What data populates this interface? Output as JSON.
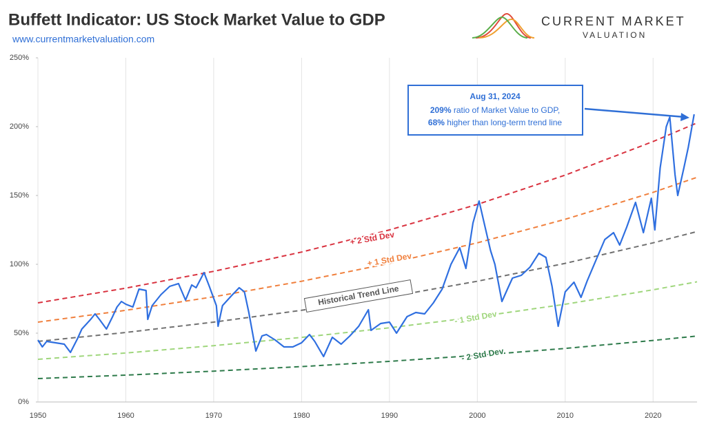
{
  "chart_data": {
    "type": "line",
    "title": "Buffett Indicator: US Stock Market Value to GDP",
    "subtitle": "www.currentmarketvaluation.com",
    "brand": [
      "CURRENT MARKET",
      "VALUATION"
    ],
    "xlim": [
      1950,
      2025
    ],
    "xticks": [
      1950,
      1960,
      1970,
      1980,
      1990,
      2000,
      2010,
      2020
    ],
    "ylim": [
      0,
      250
    ],
    "yticks": [
      {
        "value": 0,
        "label": "0%"
      },
      {
        "value": 50,
        "label": "50%"
      },
      {
        "value": 100,
        "label": "100%"
      },
      {
        "value": 150,
        "label": "150%"
      },
      {
        "value": 200,
        "label": "200%"
      },
      {
        "value": 250,
        "label": "250%"
      }
    ],
    "grid": true,
    "series": [
      {
        "name": "+ 2 Std Dev",
        "color": "#d9323f",
        "dashed": true,
        "x": [
          1950,
          1960,
          1970,
          1980,
          1990,
          2000,
          2010,
          2020,
          2025
        ],
        "values": [
          72,
          82.7,
          94.9,
          108.9,
          125.0,
          143.5,
          164.8,
          189.2,
          202.7
        ]
      },
      {
        "name": "+ 1 Std Dev",
        "color": "#f07f3c",
        "dashed": true,
        "x": [
          1950,
          1960,
          1970,
          1980,
          1990,
          2000,
          2010,
          2020,
          2025
        ],
        "values": [
          58,
          66.6,
          76.4,
          87.7,
          100.7,
          115.6,
          132.7,
          152.3,
          163.2
        ]
      },
      {
        "name": "Historical Trend Line",
        "color": "#707070",
        "dashed": true,
        "x": [
          1950,
          1960,
          1970,
          1980,
          1990,
          2000,
          2010,
          2020,
          2025
        ],
        "values": [
          44,
          50.5,
          58.0,
          66.6,
          76.4,
          87.7,
          100.7,
          115.6,
          123.8
        ]
      },
      {
        "name": "- 1 Std Dev",
        "color": "#9fd67c",
        "dashed": true,
        "x": [
          1950,
          1960,
          1970,
          1980,
          1990,
          2000,
          2010,
          2020,
          2025
        ],
        "values": [
          31,
          35.6,
          40.9,
          46.9,
          53.9,
          61.8,
          71.0,
          81.5,
          87.3
        ]
      },
      {
        "name": "- 2 Std Dev",
        "color": "#2d7a4a",
        "dashed": true,
        "x": [
          1950,
          1960,
          1970,
          1980,
          1990,
          2000,
          2010,
          2020,
          2025
        ],
        "values": [
          17,
          19.5,
          22.4,
          25.7,
          29.5,
          33.9,
          38.9,
          44.7,
          47.9
        ]
      },
      {
        "color": "#2f6fe0",
        "dashed": false,
        "x": [
          1950,
          1950.5,
          1951,
          1952,
          1953,
          1953.7,
          1954.5,
          1955,
          1956,
          1956.5,
          1957,
          1957.8,
          1958.5,
          1959,
          1959.5,
          1960,
          1960.8,
          1961.5,
          1962.3,
          1962.5,
          1963,
          1964,
          1965,
          1966,
          1966.8,
          1967.5,
          1968,
          1968.9,
          1969.5,
          1970.3,
          1970.5,
          1971,
          1972,
          1972.9,
          1973.5,
          1974,
          1974.8,
          1975.5,
          1976,
          1977,
          1978,
          1979,
          1980,
          1980.9,
          1981.5,
          1982.5,
          1983.5,
          1984.5,
          1985.5,
          1986.5,
          1987.6,
          1987.9,
          1989,
          1990,
          1990.8,
          1992,
          1993,
          1994,
          1995,
          1996,
          1997,
          1998,
          1998.7,
          1999.5,
          2000.2,
          2000.7,
          2001.5,
          2002,
          2002.8,
          2003.5,
          2004,
          2005,
          2006,
          2007,
          2007.8,
          2008.5,
          2009.2,
          2010,
          2011,
          2011.8,
          2012.5,
          2013.5,
          2014.5,
          2015.5,
          2016.2,
          2017,
          2018,
          2018.9,
          2019.8,
          2020.2,
          2020.8,
          2021.5,
          2021.9,
          2022.5,
          2022.8,
          2023.5,
          2024,
          2024.67
        ],
        "values": [
          45,
          40,
          44,
          43,
          42,
          36,
          46,
          53,
          60,
          64,
          60,
          53,
          62,
          69,
          73,
          71,
          69,
          82,
          81,
          60,
          70,
          78,
          84,
          86,
          74,
          85,
          83,
          94,
          84,
          70,
          55,
          70,
          77,
          83,
          80,
          65,
          37,
          48,
          49,
          45,
          40,
          40,
          43,
          49,
          44,
          33,
          47,
          42,
          48,
          55,
          67,
          52,
          57,
          58,
          50,
          62,
          65,
          64,
          72,
          82,
          100,
          112,
          97,
          130,
          146,
          132,
          110,
          100,
          73,
          83,
          90,
          92,
          98,
          108,
          105,
          84,
          55,
          80,
          87,
          76,
          88,
          103,
          118,
          123,
          114,
          127,
          145,
          123,
          148,
          125,
          170,
          200,
          207,
          165,
          150,
          170,
          185,
          209
        ]
      }
    ],
    "annotation": {
      "title": "Aug 31, 2024",
      "lines": [
        [
          "209%",
          " ratio of Market Value to GDP,"
        ],
        [
          "68%",
          " higher than long-term trend line"
        ]
      ]
    }
  }
}
